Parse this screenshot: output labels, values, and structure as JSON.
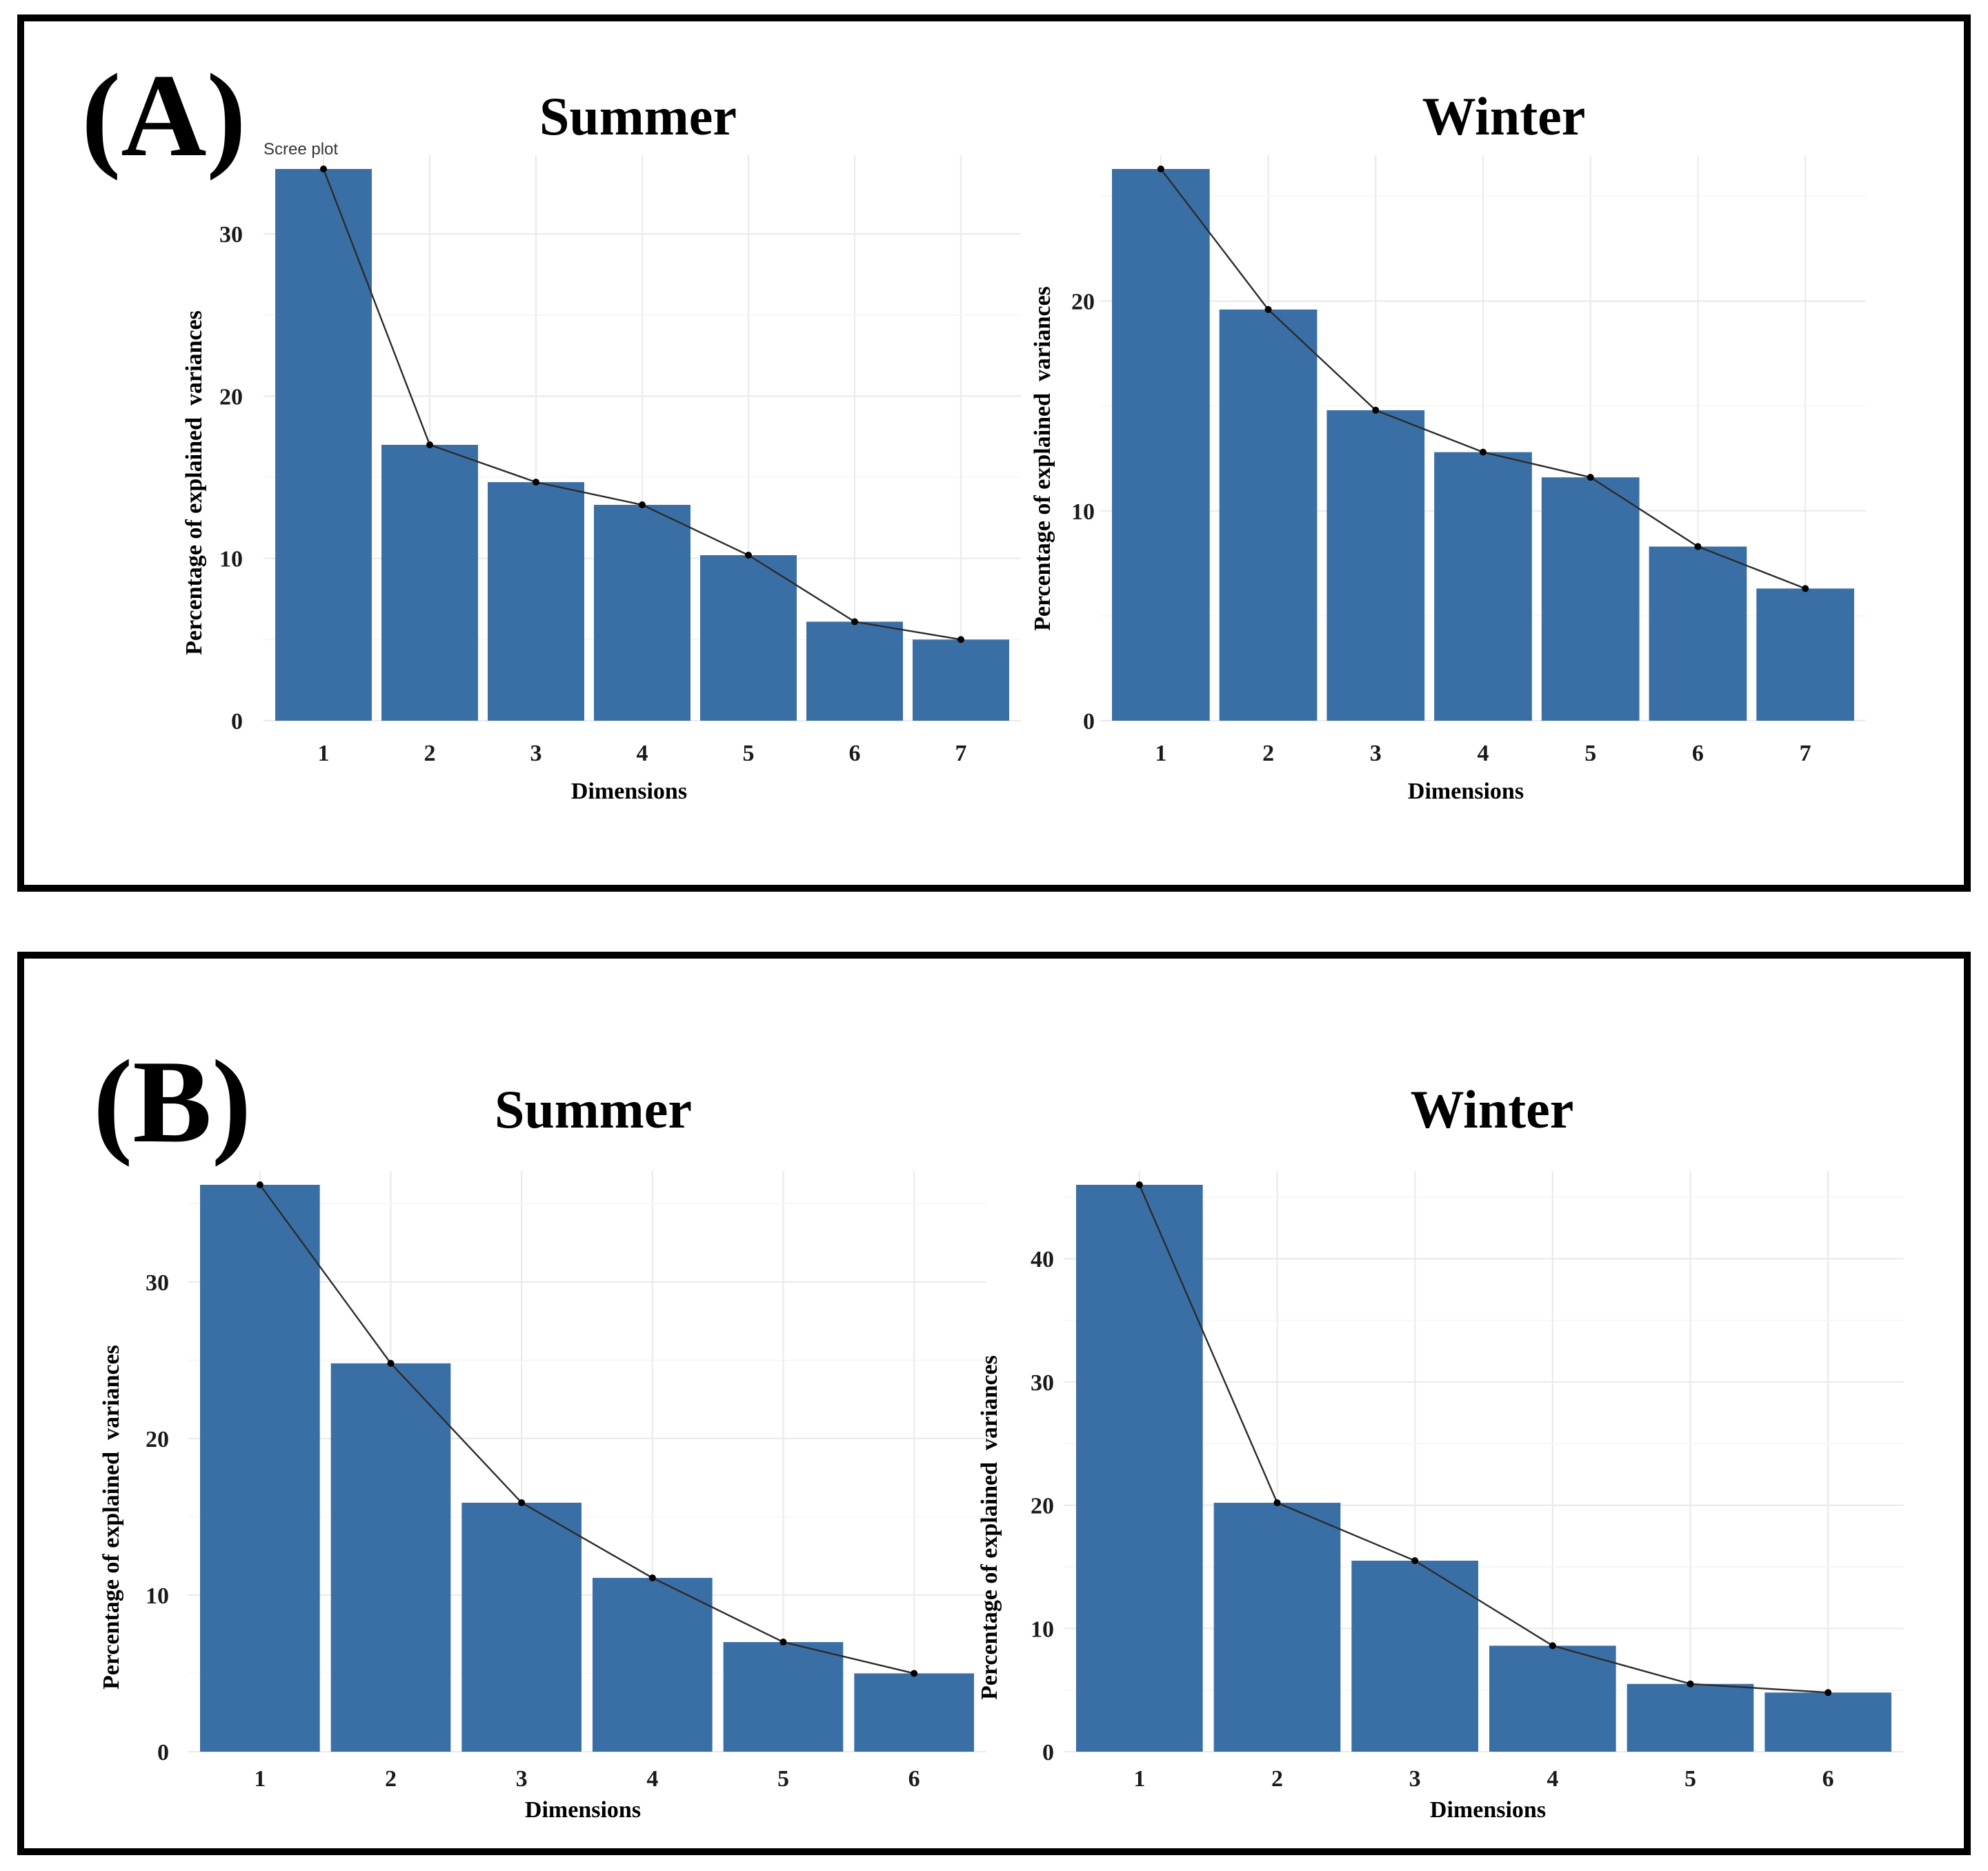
{
  "panels": [
    {
      "label": "(A)",
      "subtitle": "Scree plot"
    },
    {
      "label": "(B)",
      "subtitle": ""
    }
  ],
  "chart_data": [
    {
      "panel": "(A)",
      "type": "bar",
      "title": "Summer",
      "xlabel": "Dimensions",
      "ylabel": "Percentage of explained  variances",
      "categories": [
        "1",
        "2",
        "3",
        "4",
        "5",
        "6",
        "7"
      ],
      "values": [
        34.0,
        17.0,
        14.7,
        13.3,
        10.2,
        6.1,
        5.0
      ],
      "line_overlay": true,
      "yticks": [
        0,
        10,
        20,
        30
      ],
      "ylim": [
        0,
        34
      ],
      "grid": true
    },
    {
      "panel": "(A)",
      "type": "bar",
      "title": "Winter",
      "xlabel": "Dimensions",
      "ylabel": "Percentage of explained  variances",
      "categories": [
        "1",
        "2",
        "3",
        "4",
        "5",
        "6",
        "7"
      ],
      "values": [
        26.3,
        19.6,
        14.8,
        12.8,
        11.6,
        8.3,
        6.3
      ],
      "line_overlay": true,
      "yticks": [
        0,
        10,
        20
      ],
      "ylim": [
        0,
        26.3
      ],
      "grid": true
    },
    {
      "panel": "(B)",
      "type": "bar",
      "title": "Summer",
      "xlabel": "Dimensions",
      "ylabel": "Percentage of explained  variances",
      "categories": [
        "1",
        "2",
        "3",
        "4",
        "5",
        "6"
      ],
      "values": [
        36.2,
        24.8,
        15.9,
        11.1,
        7.0,
        5.0
      ],
      "line_overlay": true,
      "yticks": [
        0,
        10,
        20,
        30
      ],
      "ylim": [
        0,
        36.2
      ],
      "grid": true
    },
    {
      "panel": "(B)",
      "type": "bar",
      "title": "Winter",
      "xlabel": "Dimensions",
      "ylabel": "Percentage of explained  variances",
      "categories": [
        "1",
        "2",
        "3",
        "4",
        "5",
        "6"
      ],
      "values": [
        46.0,
        20.2,
        15.5,
        8.6,
        5.5,
        4.8
      ],
      "line_overlay": true,
      "yticks": [
        0,
        10,
        20,
        30,
        40
      ],
      "ylim": [
        0,
        46
      ],
      "grid": true
    }
  ]
}
